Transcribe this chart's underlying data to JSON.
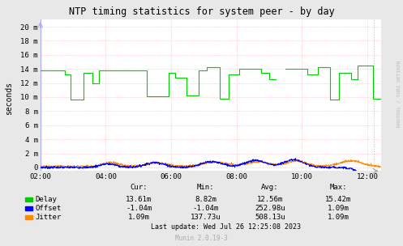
{
  "title": "NTP timing statistics for system peer - by day",
  "ylabel": "seconds",
  "rrdtool_label": "RRDTOOL / TOBI OETIKER",
  "munin_label": "Munin 2.0.19-3",
  "last_update": "Last update: Wed Jul 26 12:25:08 2023",
  "bg_color": "#e8e8e8",
  "plot_bg_color": "#ffffff",
  "grid_color": "#ffaaaa",
  "yticks": [
    "0",
    "2 m",
    "4 m",
    "6 m",
    "8 m",
    "10 m",
    "12 m",
    "14 m",
    "16 m",
    "18 m",
    "20 m"
  ],
  "ytick_vals": [
    0,
    2,
    4,
    6,
    8,
    10,
    12,
    14,
    16,
    18,
    20
  ],
  "xticks": [
    "02:00",
    "04:00",
    "06:00",
    "08:00",
    "10:00",
    "12:00"
  ],
  "xmin": 0,
  "xmax": 625,
  "ymin": -0.5,
  "ymax": 21,
  "delay_color": "#00cc00",
  "offset_color": "#0000ff",
  "jitter_color": "#ff8800",
  "legend": [
    {
      "label": "Delay",
      "cur": "13.61m",
      "min": "8.82m",
      "avg": "12.56m",
      "max": "15.42m"
    },
    {
      "label": "Offset",
      "cur": "-1.04m",
      "min": "-1.04m",
      "avg": "252.98u",
      "max": "1.09m"
    },
    {
      "label": "Jitter",
      "cur": "1.09m",
      "min": "137.73u",
      "avg": "508.13u",
      "max": "1.09m"
    }
  ]
}
